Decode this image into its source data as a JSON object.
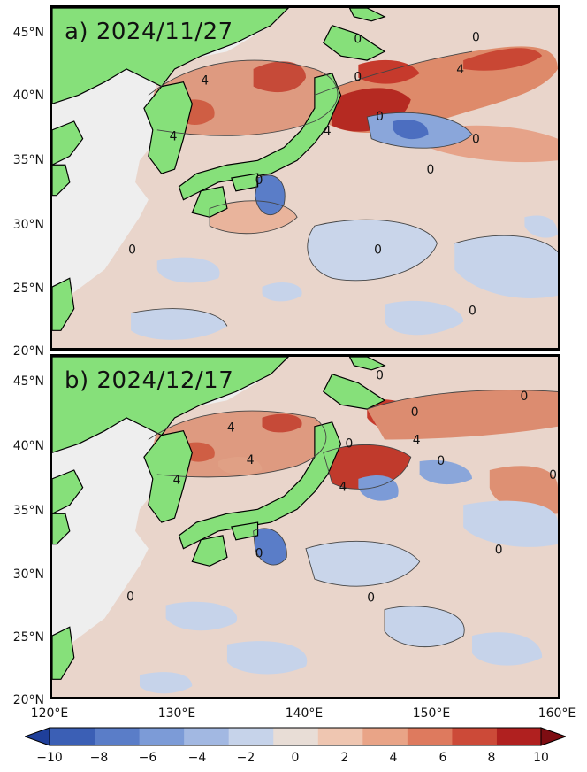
{
  "panels": [
    {
      "label": "a) 2024/11/27"
    },
    {
      "label": "b) 2024/12/17"
    }
  ],
  "lat_ticks": [
    "45°N",
    "40°N",
    "35°N",
    "30°N",
    "25°N",
    "20°N"
  ],
  "lon_ticks": [
    "120°E",
    "130°E",
    "140°E",
    "150°E",
    "160°E"
  ],
  "colorbar": {
    "ticks": [
      "−10",
      "−8",
      "−6",
      "−4",
      "−2",
      "0",
      "2",
      "4",
      "6",
      "8",
      "10"
    ],
    "colors": [
      "#3b5fb5",
      "#5a7dc8",
      "#7c9bd7",
      "#a2b8e2",
      "#c6d3ea",
      "#e8ddd6",
      "#efc6b1",
      "#e9a487",
      "#de7a5e",
      "#cc4a38",
      "#b0201f"
    ]
  },
  "contour_labels": [
    {
      "panel": 0,
      "text": "4"
    },
    {
      "panel": 0,
      "text": "4"
    },
    {
      "panel": 0,
      "text": "4"
    },
    {
      "panel": 0,
      "text": "4"
    },
    {
      "panel": 0,
      "text": "0"
    },
    {
      "panel": 0,
      "text": "0"
    },
    {
      "panel": 0,
      "text": "0"
    },
    {
      "panel": 0,
      "text": "0"
    },
    {
      "panel": 0,
      "text": "0"
    },
    {
      "panel": 0,
      "text": "0"
    },
    {
      "panel": 0,
      "text": "0"
    },
    {
      "panel": 0,
      "text": "0"
    },
    {
      "panel": 0,
      "text": "0"
    },
    {
      "panel": 0,
      "text": "0"
    },
    {
      "panel": 1,
      "text": "4"
    },
    {
      "panel": 1,
      "text": "4"
    },
    {
      "panel": 1,
      "text": "4"
    },
    {
      "panel": 1,
      "text": "4"
    },
    {
      "panel": 1,
      "text": "4"
    },
    {
      "panel": 1,
      "text": "0"
    },
    {
      "panel": 1,
      "text": "0"
    },
    {
      "panel": 1,
      "text": "0"
    },
    {
      "panel": 1,
      "text": "0"
    },
    {
      "panel": 1,
      "text": "0"
    },
    {
      "panel": 1,
      "text": "0"
    },
    {
      "panel": 1,
      "text": "0"
    },
    {
      "panel": 1,
      "text": "0"
    },
    {
      "panel": 1,
      "text": "0"
    },
    {
      "panel": 1,
      "text": "0"
    }
  ]
}
